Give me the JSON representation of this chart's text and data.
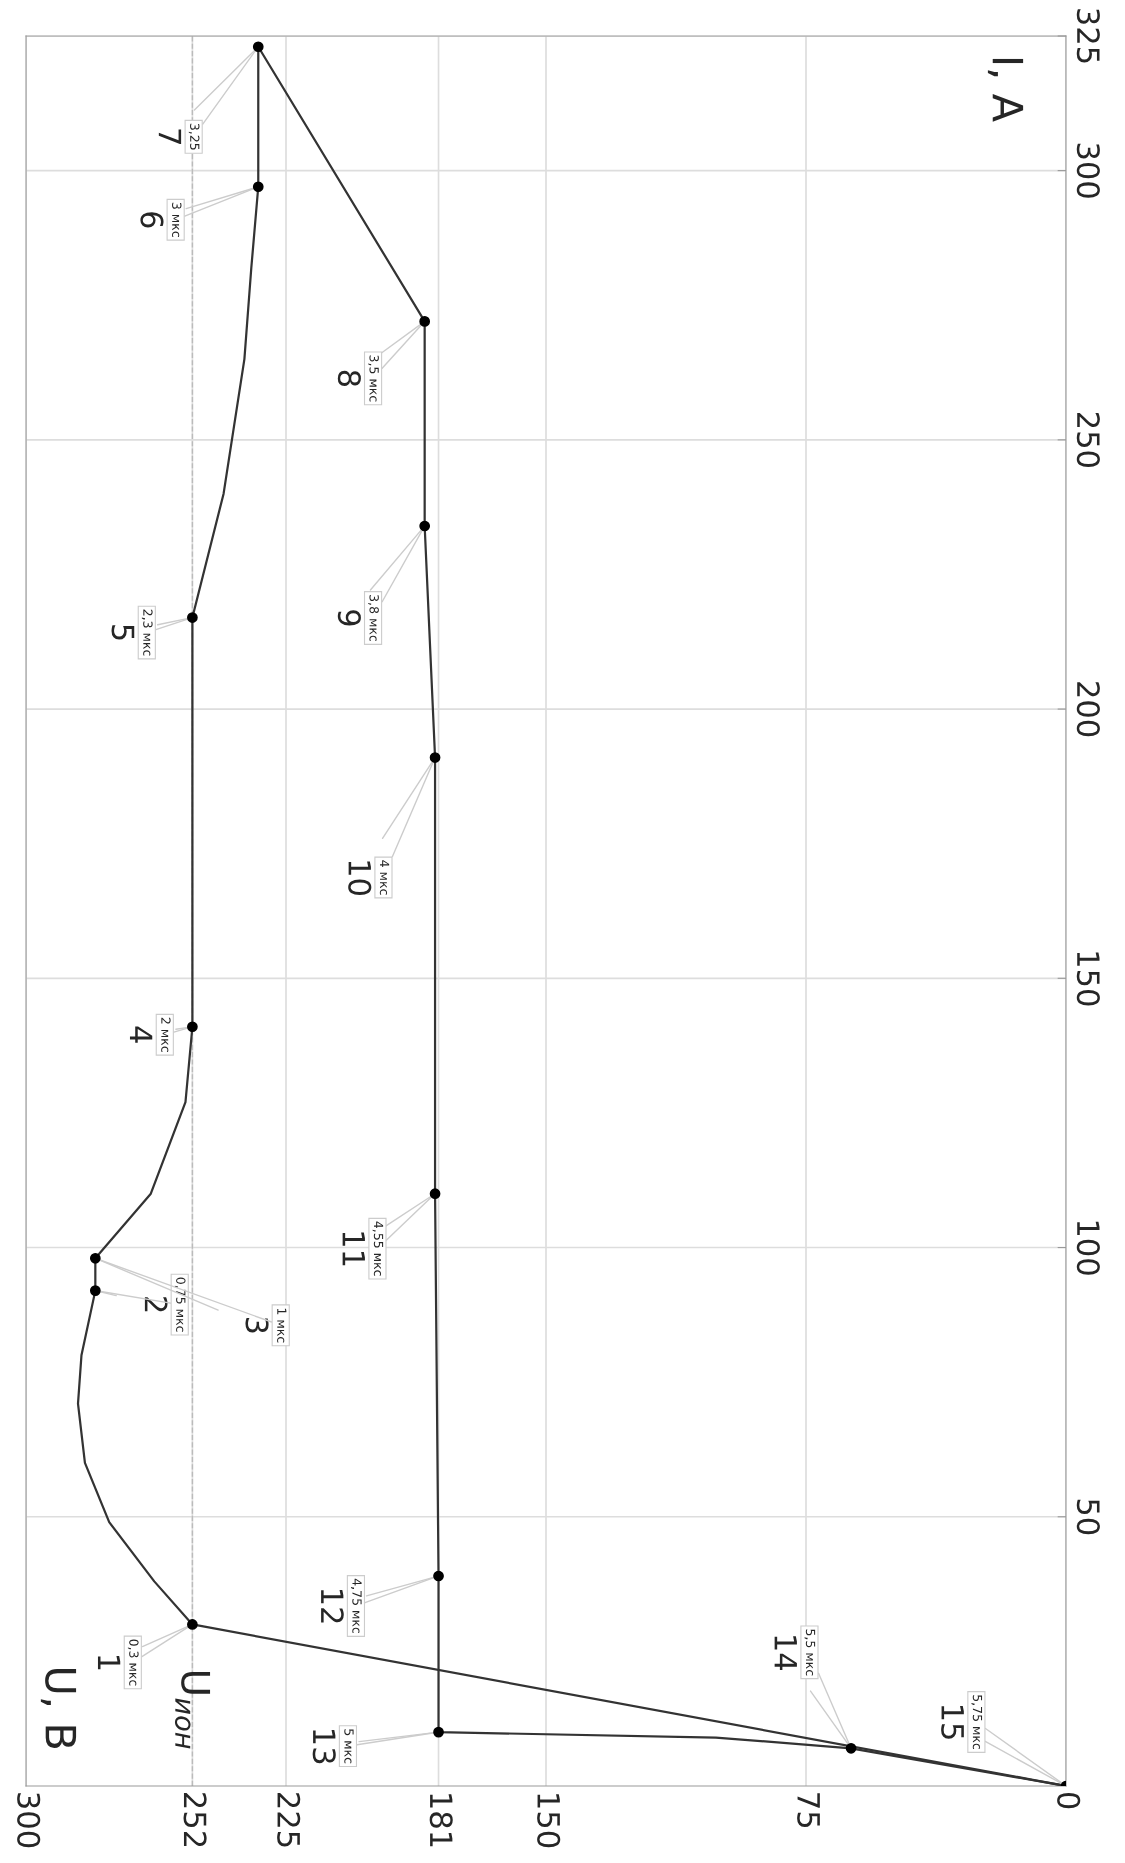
{
  "chart_data": {
    "type": "line",
    "ylabel": "I, А",
    "xlim": [
      300,
      0
    ],
    "xticks": [
      300,
      252,
      225,
      181,
      150,
      75,
      0
    ],
    "ylim": [
      0,
      325
    ],
    "yticks": [
      50,
      100,
      150,
      200,
      250,
      300,
      325
    ],
    "grid": true,
    "series": [
      {
        "type": "line",
        "color": "#333333",
        "marker": "none",
        "x": [
          0,
          252,
          263,
          276,
          283,
          285,
          284,
          280,
          280,
          264,
          254,
          252,
          252,
          243,
          237,
          235,
          233,
          233
        ],
        "values": [
          0,
          30,
          38,
          49,
          60,
          71,
          80,
          92,
          98,
          110,
          127,
          141,
          217,
          240,
          265,
          282,
          297,
          323
        ]
      },
      {
        "type": "line",
        "color": "#333333",
        "marker": "none",
        "x": [
          233,
          185,
          185,
          182,
          182,
          181,
          181,
          101,
          62,
          0
        ],
        "values": [
          323,
          272,
          234,
          191,
          110,
          39,
          10,
          9,
          7,
          0
        ]
      },
      {
        "type": "scatter",
        "color": "#000000",
        "marker": "circle",
        "x": [
          252,
          280,
          280,
          252,
          252,
          233,
          233,
          185,
          185,
          182,
          182,
          181,
          181,
          62,
          0
        ],
        "values": [
          30,
          92,
          98,
          141,
          217,
          297,
          323,
          272,
          234,
          191,
          110,
          39,
          10,
          7,
          0
        ]
      }
    ],
    "ref_lines": [
      {
        "axis": "x",
        "value": 252,
        "label": "U$_{ион}$",
        "line_style": "dashed",
        "color": "#bbbbbb"
      }
    ],
    "annotations": [
      {
        "text": "1",
        "x": 252,
        "y": 30
      },
      {
        "text": "0,3 мкс",
        "x": 252,
        "y": 30
      },
      {
        "text": "2",
        "x": 280,
        "y": 92
      },
      {
        "text": "0,75 мкс",
        "x": 280,
        "y": 92
      },
      {
        "text": "3",
        "x": 280,
        "y": 98
      },
      {
        "text": "1 мкс",
        "x": 280,
        "y": 98
      },
      {
        "text": "4",
        "x": 252,
        "y": 141
      },
      {
        "text": "2 мкс",
        "x": 252,
        "y": 141
      },
      {
        "text": "5",
        "x": 252,
        "y": 217
      },
      {
        "text": "2,3 мкс",
        "x": 252,
        "y": 217
      },
      {
        "text": "6",
        "x": 233,
        "y": 297
      },
      {
        "text": "3 мкс",
        "x": 233,
        "y": 297
      },
      {
        "text": "7",
        "x": 233,
        "y": 323
      },
      {
        "text": "3,25",
        "x": 233,
        "y": 323
      },
      {
        "text": "8",
        "x": 185,
        "y": 272
      },
      {
        "text": "3,5 мкс",
        "x": 185,
        "y": 272
      },
      {
        "text": "9",
        "x": 185,
        "y": 234
      },
      {
        "text": "3,8 мкс",
        "x": 185,
        "y": 234
      },
      {
        "text": "10",
        "x": 182,
        "y": 191
      },
      {
        "text": "4 мкс",
        "x": 182,
        "y": 191
      },
      {
        "text": "11",
        "x": 182,
        "y": 110
      },
      {
        "text": "4,55 мкс",
        "x": 182,
        "y": 110
      },
      {
        "text": "12",
        "x": 181,
        "y": 39
      },
      {
        "text": "4,75 мкс",
        "x": 181,
        "y": 39
      },
      {
        "text": "13",
        "x": 181,
        "y": 10
      },
      {
        "text": "5 мкс",
        "x": 181,
        "y": 10
      },
      {
        "text": "14",
        "x": 62,
        "y": 7
      },
      {
        "text": "5,5 мкс",
        "x": 62,
        "y": 7
      },
      {
        "text": "15",
        "x": 0,
        "y": 0
      },
      {
        "text": "5,75 мкс",
        "x": 0,
        "y": 0
      },
      "U, В"
    ]
  }
}
